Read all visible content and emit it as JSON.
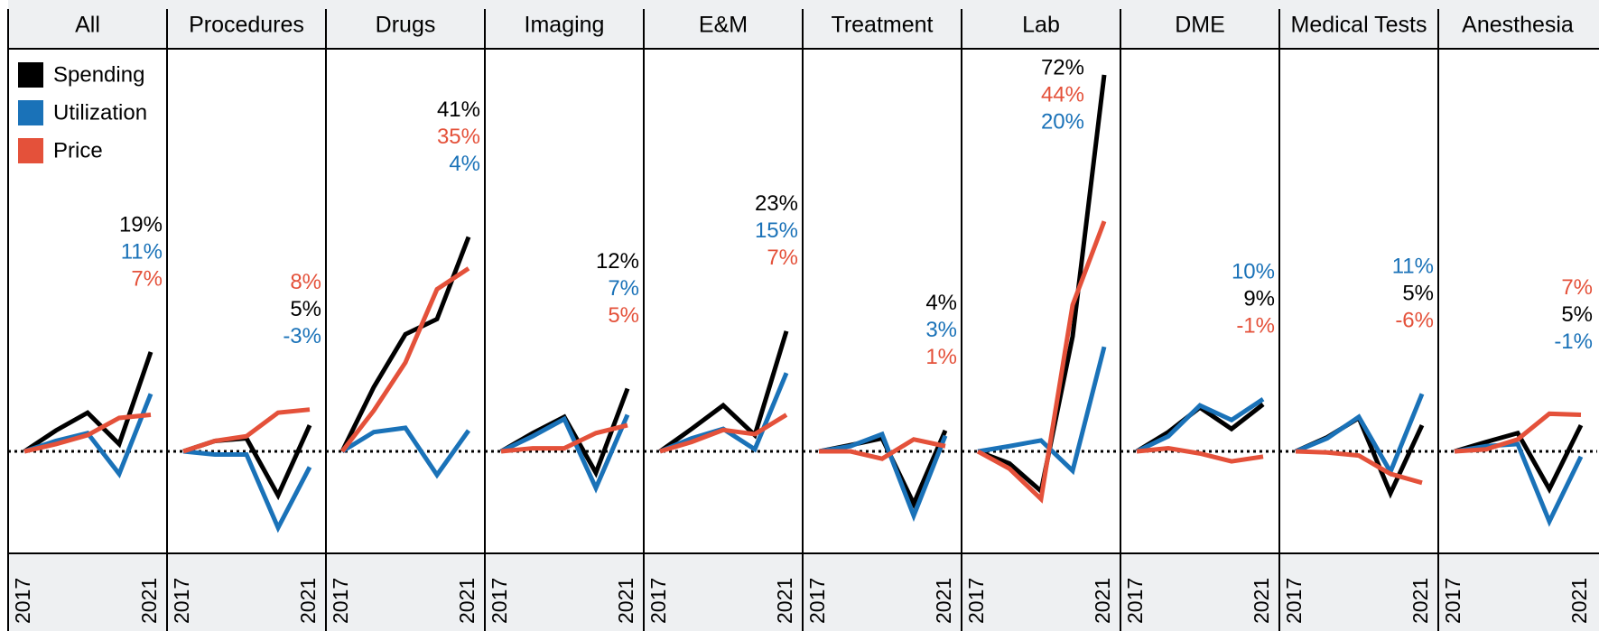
{
  "chart_data": [
    {
      "type": "line",
      "title": "All",
      "categories": [
        "2017",
        null,
        null,
        null,
        "2021"
      ],
      "ylim": [
        -19.5,
        77
      ],
      "series": [
        {
          "name": "Spending",
          "color": "#000000",
          "values": [
            0,
            4,
            7.4,
            1.4,
            19
          ],
          "value_labels": [
            null,
            null,
            null,
            null,
            "19%"
          ]
        },
        {
          "name": "Utilization",
          "color": "#1a72b8",
          "values": [
            0,
            2,
            3.5,
            -4.3,
            11
          ],
          "value_labels": [
            null,
            null,
            null,
            null,
            "11%"
          ]
        },
        {
          "name": "Price",
          "color": "#e4513a",
          "values": [
            0,
            1.4,
            3.1,
            6.4,
            7
          ],
          "value_labels": [
            null,
            null,
            null,
            null,
            "7%"
          ]
        }
      ]
    },
    {
      "type": "line",
      "title": "Procedures",
      "categories": [
        "2017",
        null,
        null,
        null,
        "2021"
      ],
      "ylim": [
        -19.5,
        77
      ],
      "series": [
        {
          "name": "Spending",
          "color": "#000000",
          "values": [
            0,
            2,
            2.5,
            -8.4,
            5
          ],
          "value_labels": [
            null,
            null,
            null,
            null,
            "5%"
          ]
        },
        {
          "name": "Utilization",
          "color": "#1a72b8",
          "values": [
            0,
            -0.6,
            -0.6,
            -14.6,
            -3
          ],
          "value_labels": [
            null,
            null,
            null,
            null,
            "-3%"
          ]
        },
        {
          "name": "Price",
          "color": "#e4513a",
          "values": [
            0,
            2,
            2.9,
            7.4,
            8
          ],
          "value_labels": [
            null,
            null,
            null,
            null,
            "8%"
          ]
        }
      ]
    },
    {
      "type": "line",
      "title": "Drugs",
      "categories": [
        "2017",
        null,
        null,
        null,
        "2021"
      ],
      "ylim": [
        -19.5,
        77
      ],
      "series": [
        {
          "name": "Spending",
          "color": "#000000",
          "values": [
            0,
            12.3,
            22.4,
            25.3,
            41
          ],
          "value_labels": [
            null,
            null,
            null,
            null,
            "41%"
          ]
        },
        {
          "name": "Utilization",
          "color": "#1a72b8",
          "values": [
            0,
            3.7,
            4.5,
            -4.5,
            4
          ],
          "value_labels": [
            null,
            null,
            null,
            null,
            "4%"
          ]
        },
        {
          "name": "Price",
          "color": "#e4513a",
          "values": [
            0,
            7.8,
            17,
            31,
            35
          ],
          "value_labels": [
            null,
            null,
            null,
            null,
            "35%"
          ]
        }
      ]
    },
    {
      "type": "line",
      "title": "Imaging",
      "categories": [
        "2017",
        null,
        null,
        null,
        "2021"
      ],
      "ylim": [
        -19.5,
        77
      ],
      "series": [
        {
          "name": "Spending",
          "color": "#000000",
          "values": [
            0,
            3.5,
            6.6,
            -4.1,
            12
          ],
          "value_labels": [
            null,
            null,
            null,
            null,
            "12%"
          ]
        },
        {
          "name": "Utilization",
          "color": "#1a72b8",
          "values": [
            0,
            2.9,
            6.2,
            -7,
            7
          ],
          "value_labels": [
            null,
            null,
            null,
            null,
            "7%"
          ]
        },
        {
          "name": "Price",
          "color": "#e4513a",
          "values": [
            0,
            0.6,
            0.6,
            3.5,
            5
          ],
          "value_labels": [
            null,
            null,
            null,
            null,
            "5%"
          ]
        }
      ]
    },
    {
      "type": "line",
      "title": "E&M",
      "categories": [
        "2017",
        null,
        null,
        null,
        "2021"
      ],
      "ylim": [
        -19.5,
        77
      ],
      "series": [
        {
          "name": "Spending",
          "color": "#000000",
          "values": [
            0,
            4.3,
            8.8,
            3.1,
            23
          ],
          "value_labels": [
            null,
            null,
            null,
            null,
            "23%"
          ]
        },
        {
          "name": "Utilization",
          "color": "#1a72b8",
          "values": [
            0,
            2.5,
            4.3,
            0.4,
            15
          ],
          "value_labels": [
            null,
            null,
            null,
            null,
            "15%"
          ]
        },
        {
          "name": "Price",
          "color": "#e4513a",
          "values": [
            0,
            1.8,
            4.1,
            3.3,
            7
          ],
          "value_labels": [
            null,
            null,
            null,
            null,
            "7%"
          ]
        }
      ]
    },
    {
      "type": "line",
      "title": "Treatment",
      "categories": [
        "2017",
        null,
        null,
        null,
        "2021"
      ],
      "ylim": [
        -19.5,
        77
      ],
      "series": [
        {
          "name": "Spending",
          "color": "#000000",
          "values": [
            0,
            1.2,
            2.5,
            -10,
            4
          ],
          "value_labels": [
            null,
            null,
            null,
            null,
            "4%"
          ]
        },
        {
          "name": "Utilization",
          "color": "#1a72b8",
          "values": [
            0,
            1,
            3.3,
            -12.3,
            3
          ],
          "value_labels": [
            null,
            null,
            null,
            null,
            "3%"
          ]
        },
        {
          "name": "Price",
          "color": "#e4513a",
          "values": [
            0,
            0,
            -1.4,
            2.3,
            1
          ],
          "value_labels": [
            null,
            null,
            null,
            null,
            "1%"
          ]
        }
      ]
    },
    {
      "type": "line",
      "title": "Lab",
      "categories": [
        "2017",
        null,
        null,
        null,
        "2021"
      ],
      "ylim": [
        -19.5,
        77
      ],
      "series": [
        {
          "name": "Spending",
          "color": "#000000",
          "values": [
            0,
            -2.3,
            -7.6,
            22,
            72
          ],
          "value_labels": [
            null,
            null,
            null,
            null,
            "72%"
          ]
        },
        {
          "name": "Utilization",
          "color": "#1a72b8",
          "values": [
            0,
            1,
            2.1,
            -3.7,
            20
          ],
          "value_labels": [
            null,
            null,
            null,
            null,
            "20%"
          ]
        },
        {
          "name": "Price",
          "color": "#e4513a",
          "values": [
            0,
            -3.3,
            -9.1,
            28,
            44
          ],
          "value_labels": [
            null,
            null,
            null,
            null,
            "44%"
          ]
        }
      ]
    },
    {
      "type": "line",
      "title": "DME",
      "categories": [
        "2017",
        null,
        null,
        null,
        "2021"
      ],
      "ylim": [
        -19.5,
        77
      ],
      "series": [
        {
          "name": "Spending",
          "color": "#000000",
          "values": [
            0,
            3.7,
            8.4,
            4.3,
            9
          ],
          "value_labels": [
            null,
            null,
            null,
            null,
            "9%"
          ]
        },
        {
          "name": "Utilization",
          "color": "#1a72b8",
          "values": [
            0,
            2.9,
            8.8,
            6,
            10
          ],
          "value_labels": [
            null,
            null,
            null,
            null,
            "10%"
          ]
        },
        {
          "name": "Price",
          "color": "#e4513a",
          "values": [
            0,
            0.6,
            -0.4,
            -1.9,
            -1
          ],
          "value_labels": [
            null,
            null,
            null,
            null,
            "-1%"
          ]
        }
      ]
    },
    {
      "type": "line",
      "title": "Medical Tests",
      "categories": [
        "2017",
        null,
        null,
        null,
        "2021"
      ],
      "ylim": [
        -19.5,
        77
      ],
      "series": [
        {
          "name": "Spending",
          "color": "#000000",
          "values": [
            0,
            2.7,
            6.4,
            -8,
            5
          ],
          "value_labels": [
            null,
            null,
            null,
            null,
            "5%"
          ]
        },
        {
          "name": "Utilization",
          "color": "#1a72b8",
          "values": [
            0,
            2.5,
            6.6,
            -3.9,
            11
          ],
          "value_labels": [
            null,
            null,
            null,
            null,
            "11%"
          ]
        },
        {
          "name": "Price",
          "color": "#e4513a",
          "values": [
            0,
            -0.2,
            -0.8,
            -4.3,
            -6
          ],
          "value_labels": [
            null,
            null,
            null,
            null,
            "-6%"
          ]
        }
      ]
    },
    {
      "type": "line",
      "title": "Anesthesia",
      "categories": [
        "2017",
        null,
        null,
        null,
        "2021"
      ],
      "ylim": [
        -19.5,
        77
      ],
      "series": [
        {
          "name": "Spending",
          "color": "#000000",
          "values": [
            0,
            1.8,
            3.5,
            -7.2,
            5
          ],
          "value_labels": [
            null,
            null,
            null,
            null,
            "5%"
          ]
        },
        {
          "name": "Utilization",
          "color": "#1a72b8",
          "values": [
            0,
            1,
            1.4,
            -13.4,
            -1
          ],
          "value_labels": [
            null,
            null,
            null,
            null,
            "-1%"
          ]
        },
        {
          "name": "Price",
          "color": "#e4513a",
          "values": [
            0,
            0.4,
            2.3,
            7.2,
            7
          ],
          "value_labels": [
            null,
            null,
            null,
            null,
            "7%"
          ]
        }
      ]
    }
  ]
}
